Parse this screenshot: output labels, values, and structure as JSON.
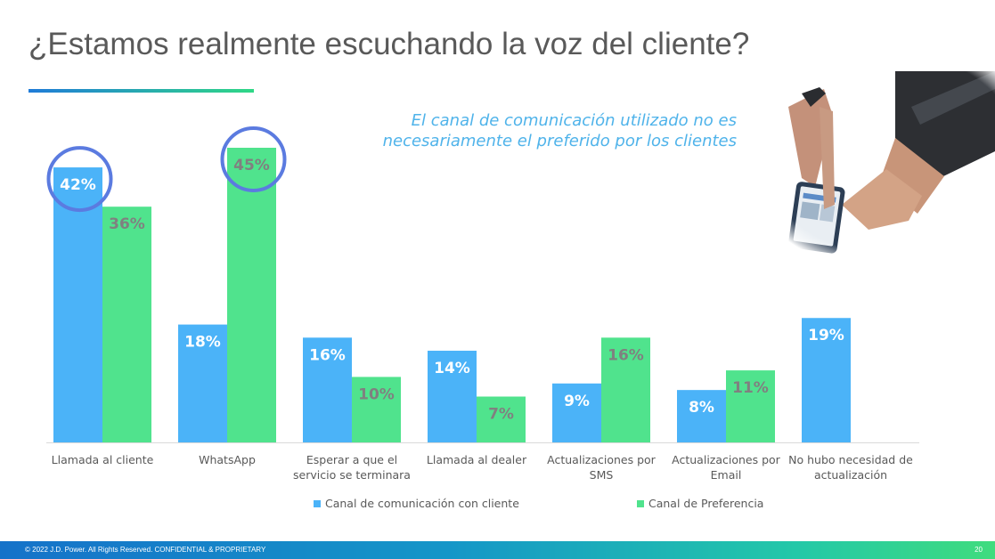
{
  "slide": {
    "title": "¿Estamos realmente escuchando la voz del cliente?",
    "note": "El canal de comunicación utilizado no es necesariamente el preferido por los clientes",
    "footer": "© 2022 J.D. Power. All Rights Reserved. CONFIDENTIAL & PROPRIETARY",
    "page_number": "20",
    "photo_description_icon": "hand-phone-photo"
  },
  "colors": {
    "series1": "#4bb3f8",
    "series2": "#50e38d",
    "highlight_circle": "#5b7be0",
    "label_series1": "#ffffff",
    "label_series2": "#808080",
    "note": "#4fb3ea",
    "title": "#595959"
  },
  "chart_data": {
    "type": "bar",
    "categories": [
      "Llamada al cliente",
      "WhatsApp",
      "Esperar a que el servicio se terminara",
      "Llamada al dealer",
      "Actualizaciones por SMS",
      "Actualizaciones por Email",
      "No hubo necesidad de actualización"
    ],
    "category_lines": [
      [
        "Llamada al cliente"
      ],
      [
        "WhatsApp"
      ],
      [
        "Esperar a que el",
        "servicio se terminara"
      ],
      [
        "Llamada al dealer"
      ],
      [
        "Actualizaciones por",
        "SMS"
      ],
      [
        "Actualizaciones por",
        "Email"
      ],
      [
        "No hubo necesidad de",
        "actualización"
      ]
    ],
    "series": [
      {
        "name": "Canal de comunicación con cliente",
        "values": [
          42,
          18,
          16,
          14,
          9,
          8,
          19
        ],
        "labels": [
          "42%",
          "18%",
          "16%",
          "14%",
          "9%",
          "8%",
          "19%"
        ]
      },
      {
        "name": "Canal de Preferencia",
        "values": [
          36,
          45,
          10,
          7,
          16,
          11,
          null
        ],
        "labels": [
          "36%",
          "45%",
          "10%",
          "7%",
          "16%",
          "11%",
          ""
        ]
      }
    ],
    "highlighted": [
      {
        "series": 0,
        "category": 0
      },
      {
        "series": 1,
        "category": 1
      }
    ],
    "ylim": [
      0,
      45
    ],
    "grid": false,
    "legend_position": "bottom"
  }
}
